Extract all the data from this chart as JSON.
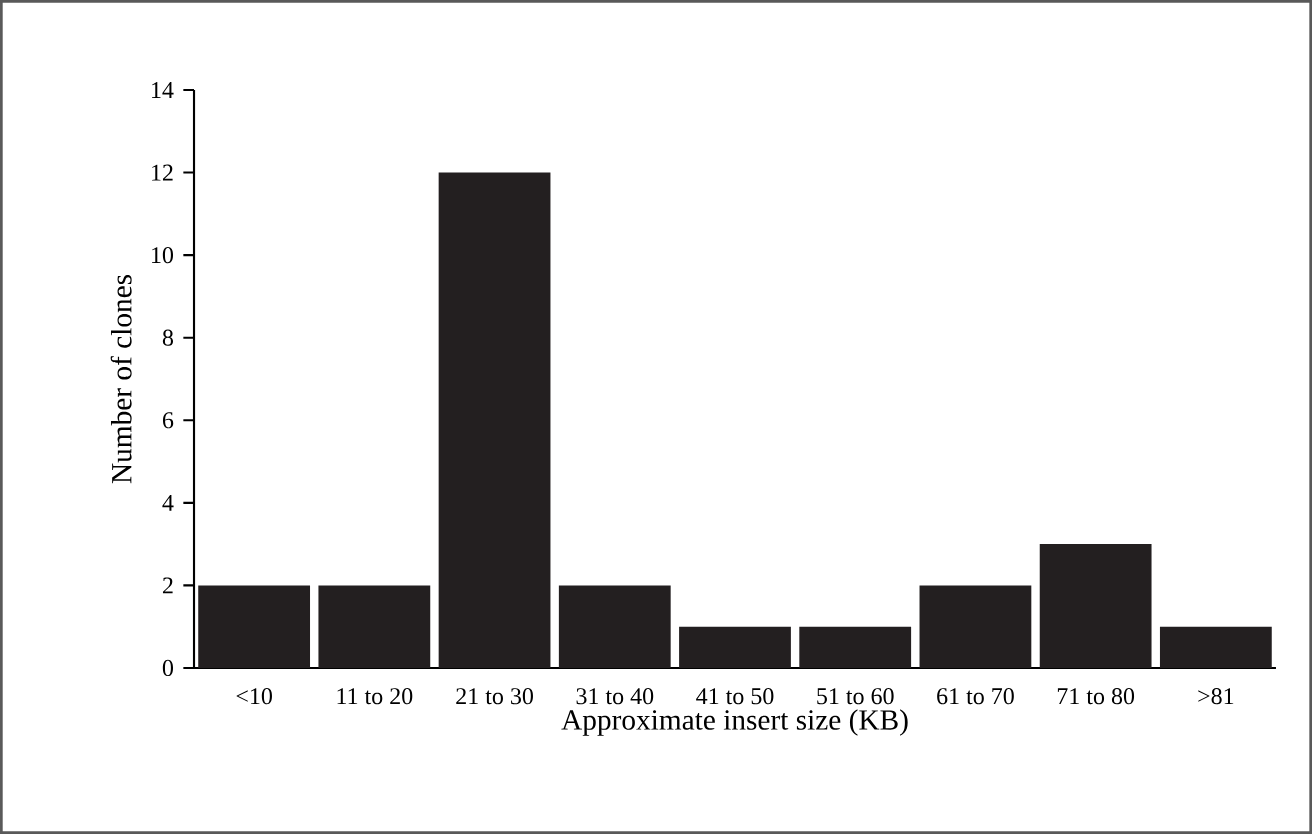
{
  "chart_data": {
    "type": "bar",
    "xlabel": "Approximate insert size (KB)",
    "ylabel": "Number of clones",
    "categories": [
      "<10",
      "11 to 20",
      "21 to 30",
      "31 to 40",
      "41 to 50",
      "51 to 60",
      "61 to 70",
      "71 to 80",
      ">81"
    ],
    "values": [
      2,
      2,
      12,
      2,
      1,
      1,
      2,
      3,
      1
    ],
    "color": "#231f20",
    "ylim": [
      0,
      14
    ],
    "yticks": [
      0,
      2,
      4,
      6,
      8,
      10,
      12,
      14
    ]
  }
}
